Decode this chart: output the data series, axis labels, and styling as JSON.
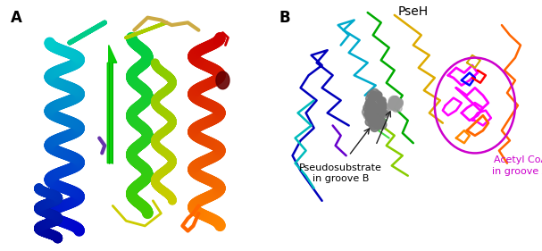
{
  "panel_A_label": "A",
  "panel_B_label": "B",
  "label_pshe": "PseH",
  "label_pseudo": "Pseudosubstrate\nin groove B",
  "label_acetyl": "Acetyl CoA\nin groove A",
  "label_color_pseudo": "#000000",
  "label_color_acetyl": "#cc00cc",
  "label_color_pshe": "#000000",
  "background_color": "#ffffff",
  "ellipse_color": "#cc00cc",
  "fontsize_label": 12,
  "fontsize_pshe": 10,
  "fontsize_text": 8,
  "panel_A_xlim": [
    0,
    10
  ],
  "panel_A_ylim": [
    0,
    10
  ],
  "panel_B_xlim": [
    0,
    10
  ],
  "panel_B_ylim": [
    0,
    10
  ],
  "helix_lw": 9,
  "loop_lw": 3,
  "backbone_lw": 1.8,
  "helix_alpha": 1.0,
  "ellipse_lw": 1.8,
  "arrow_lw": 1.0
}
